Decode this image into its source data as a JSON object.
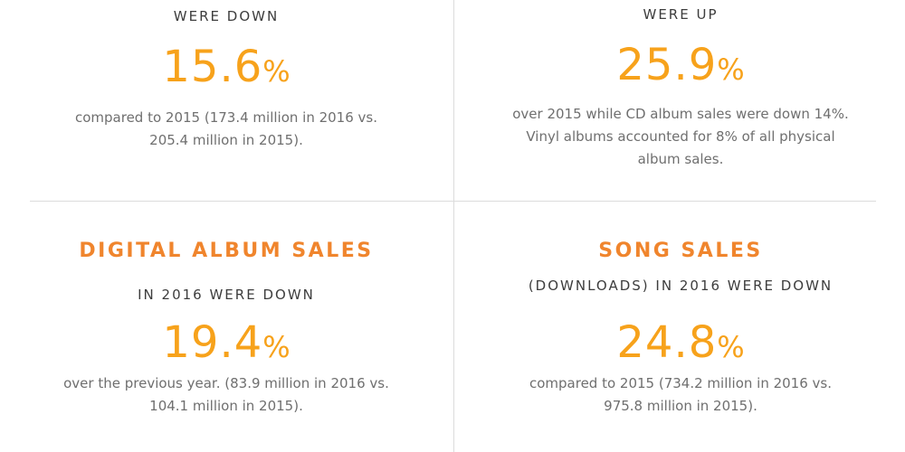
{
  "top_left": {
    "subhead": "WERE DOWN",
    "stat_value": "15.6",
    "stat_unit": "%",
    "desc_line1": "compared to 2015 (173.4 million in 2016 vs.",
    "desc_line2": "205.4 million in 2015)."
  },
  "top_right": {
    "subhead": "WERE UP",
    "stat_value": "25.9",
    "stat_unit": "%",
    "desc_line1": "over 2015 while CD album sales were down 14%.",
    "desc_line2": "Vinyl albums accounted for 8% of all physical",
    "desc_line3": "album sales."
  },
  "bottom_left": {
    "heading": "DIGITAL ALBUM SALES",
    "subhead": "IN 2016 WERE DOWN",
    "stat_value": "19.4",
    "stat_unit": "%",
    "desc_line1": "over the previous year. (83.9 million in 2016 vs.",
    "desc_line2": "104.1 million in 2015)."
  },
  "bottom_right": {
    "heading": "SONG SALES",
    "subhead": "(DOWNLOADS) IN 2016 WERE DOWN",
    "stat_value": "24.8",
    "stat_unit": "%",
    "desc_line1": "compared to 2015 (734.2 million in 2016 vs.",
    "desc_line2": "975.8 million in 2015)."
  },
  "colors": {
    "heading": "#f0852d",
    "stat": "#f7a21b",
    "subhead": "#3d3d3d",
    "body_text": "#6f6f6f",
    "divider": "#dcdcdc"
  }
}
